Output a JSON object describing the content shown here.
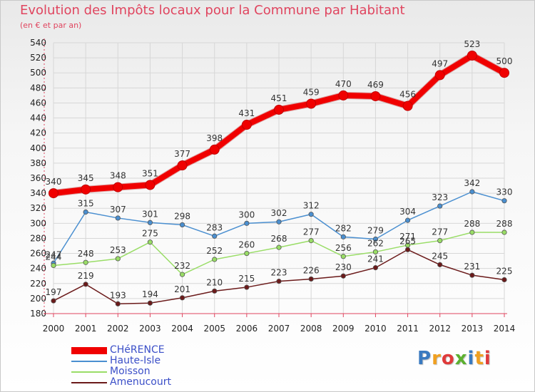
{
  "header": {
    "title": "Evolution des Impôts locaux pour la Commune par Habitant",
    "subtitle": "(en € et par an)"
  },
  "logo": {
    "text": "Proxiti",
    "colors": [
      "#3a7ac0",
      "#f0a020",
      "#e03a3a",
      "#5cb030",
      "#3a7ac0",
      "#f0a020",
      "#e03a3a"
    ]
  },
  "colors": {
    "title": "#e0455f",
    "axis": "#e0455f",
    "grid": "#d7d7d7"
  },
  "chart_data": {
    "type": "line",
    "title": "Evolution des Impôts locaux pour la Commune par Habitant",
    "subtitle": "(en € et par an)",
    "xlabel": "",
    "ylabel": "",
    "ylim": [
      180,
      540
    ],
    "yticks": [
      180,
      200,
      220,
      240,
      260,
      280,
      300,
      320,
      340,
      360,
      380,
      400,
      420,
      440,
      460,
      480,
      500,
      520,
      540
    ],
    "grid": true,
    "legend_position": "bottom-left",
    "x": [
      "2000",
      "2001",
      "2002",
      "2003",
      "2004",
      "2005",
      "2006",
      "2007",
      "2008",
      "2009",
      "2010",
      "2011",
      "2012",
      "2013",
      "2014"
    ],
    "series": [
      {
        "name": "CHéRENCE",
        "color": "#f00000",
        "line_width": 8,
        "values": [
          340,
          345,
          348,
          351,
          377,
          398,
          431,
          451,
          459,
          470,
          469,
          456,
          497,
          523,
          500
        ]
      },
      {
        "name": "Haute-Isle",
        "color": "#4a8fd0",
        "line_width": 1.5,
        "values": [
          247,
          315,
          307,
          301,
          298,
          283,
          300,
          302,
          312,
          282,
          279,
          304,
          323,
          342,
          330
        ]
      },
      {
        "name": "Moisson",
        "color": "#99dd66",
        "line_width": 1.5,
        "values": [
          244,
          248,
          253,
          275,
          232,
          252,
          260,
          268,
          277,
          256,
          262,
          271,
          277,
          288,
          288
        ]
      },
      {
        "name": "Amenucourt",
        "color": "#6b1a1a",
        "line_width": 1.5,
        "values": [
          197,
          219,
          193,
          194,
          201,
          210,
          215,
          223,
          226,
          230,
          241,
          265,
          245,
          231,
          225
        ]
      }
    ]
  }
}
